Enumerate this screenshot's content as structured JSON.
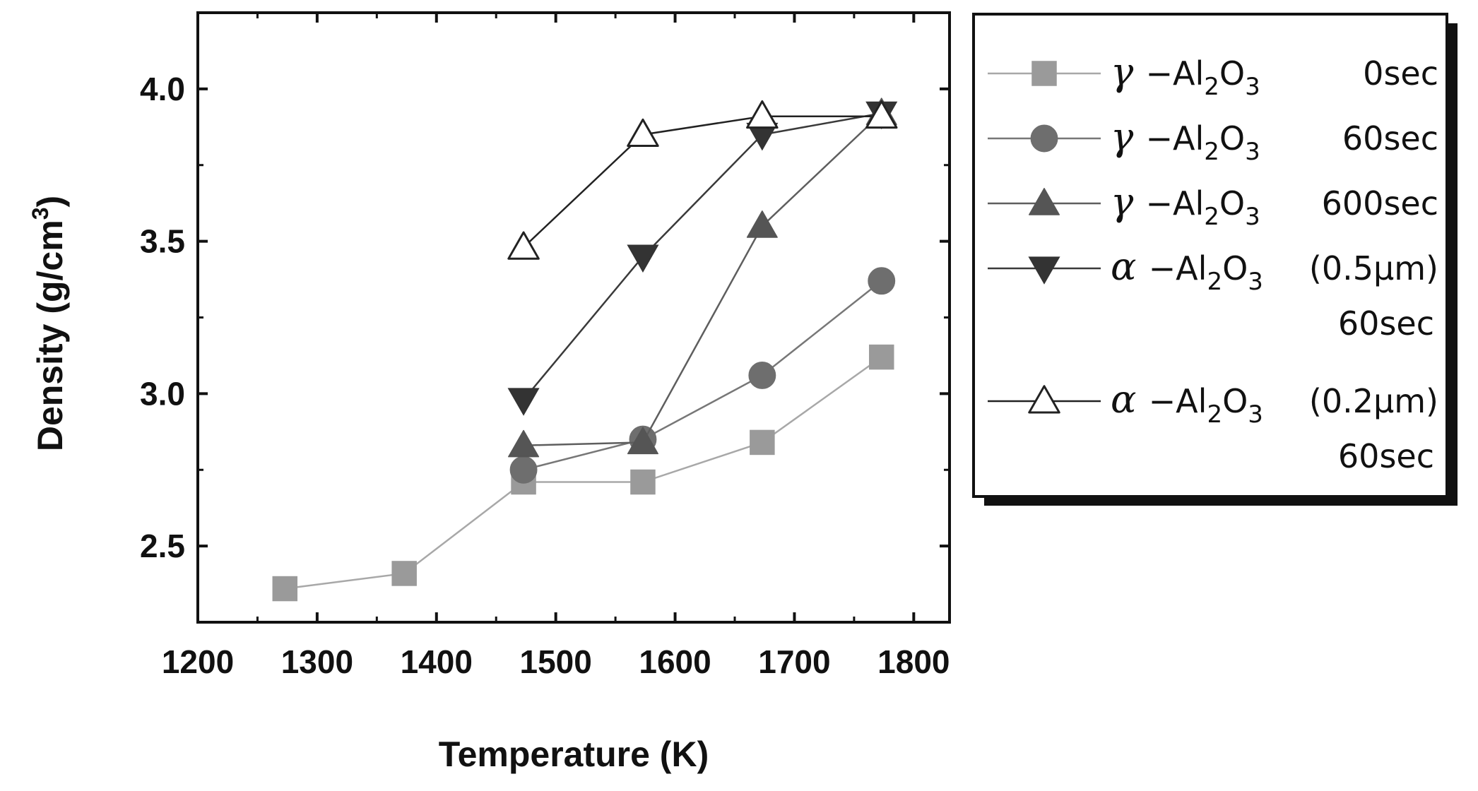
{
  "chart_data": {
    "type": "line",
    "title": "",
    "xlabel": "Temperature (K)",
    "ylabel_main": "Density (g/cm",
    "ylabel_sup": "3",
    "ylabel_end": ")",
    "xlim": [
      1200,
      1830
    ],
    "ylim": [
      2.25,
      4.25
    ],
    "xticks": [
      1200,
      1300,
      1400,
      1500,
      1600,
      1700,
      1800
    ],
    "xtick_labels": [
      "1200",
      "1300",
      "1400",
      "1500",
      "1600",
      "1700",
      "1800"
    ],
    "yticks": [
      2.5,
      3.0,
      3.5,
      4.0
    ],
    "ytick_labels": [
      "2.5",
      "3.0",
      "3.5",
      "4.0"
    ],
    "grid": false,
    "legend_position": "outside-right",
    "series": [
      {
        "name": "γ-Al2O3 0sec",
        "legend": {
          "greek": "γ",
          "base": "−Al",
          "sub1": "2",
          "mid": "O",
          "sub2": "3",
          "suffix": "0sec",
          "second_line": ""
        },
        "marker": "square",
        "color": "#9a9a9a",
        "fill": "#9a9a9a",
        "line_color": "#a8a8a8",
        "x": [
          1273,
          1373,
          1473,
          1573,
          1673,
          1773
        ],
        "y": [
          2.36,
          2.41,
          2.71,
          2.71,
          2.84,
          3.12
        ]
      },
      {
        "name": "γ-Al2O3 60sec",
        "legend": {
          "greek": "γ",
          "base": "−Al",
          "sub1": "2",
          "mid": "O",
          "sub2": "3",
          "suffix": "60sec",
          "second_line": ""
        },
        "marker": "circle",
        "color": "#6e6e6e",
        "fill": "#6e6e6e",
        "line_color": "#777777",
        "x": [
          1473,
          1573,
          1673,
          1773
        ],
        "y": [
          2.75,
          2.85,
          3.06,
          3.37
        ]
      },
      {
        "name": "γ-Al2O3 600sec",
        "legend": {
          "greek": "γ",
          "base": "−Al",
          "sub1": "2",
          "mid": "O",
          "sub2": "3",
          "suffix": "600sec",
          "second_line": ""
        },
        "marker": "triangle-up",
        "color": "#555555",
        "fill": "#555555",
        "line_color": "#5e5e5e",
        "x": [
          1473,
          1573,
          1673,
          1773
        ],
        "y": [
          2.83,
          2.84,
          3.55,
          3.92
        ]
      },
      {
        "name": "α-Al2O3 (0.5μm) 60sec",
        "legend": {
          "greek": "α",
          "base": "−Al",
          "sub1": "2",
          "mid": "O",
          "sub2": "3",
          "suffix": "(0.5μm)",
          "second_line": "60sec"
        },
        "marker": "triangle-down",
        "color": "#333333",
        "fill": "#333333",
        "line_color": "#3a3a3a",
        "x": [
          1473,
          1573,
          1673,
          1773
        ],
        "y": [
          2.98,
          3.45,
          3.85,
          3.92
        ]
      },
      {
        "name": "α-Al2O3 (0.2μm) 60sec",
        "legend": {
          "greek": "α",
          "base": "−Al",
          "sub1": "2",
          "mid": "O",
          "sub2": "3",
          "suffix": "(0.2μm)",
          "second_line": "60sec"
        },
        "marker": "triangle-up-open",
        "color": "#222222",
        "fill": "#ffffff",
        "line_color": "#222222",
        "x": [
          1473,
          1573,
          1673,
          1773
        ],
        "y": [
          3.48,
          3.85,
          3.91,
          3.91
        ]
      }
    ]
  }
}
